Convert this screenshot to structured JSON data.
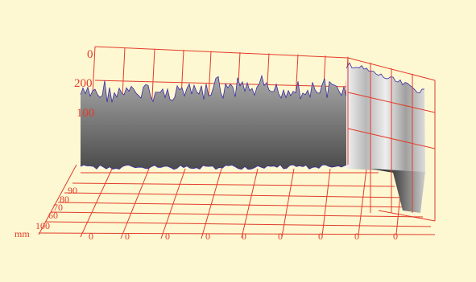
{
  "plot": {
    "background": "#fdf8d2",
    "grid_color": "#e33b2a",
    "surface_color": "#8a8a8a",
    "edge_color": "#3a2aa8",
    "z_labels": [
      "0",
      "200",
      "100"
    ],
    "depth_labels": [
      "90",
      "80",
      "70",
      "60",
      "100"
    ],
    "unit_label": "mm",
    "bottom_labels": [
      "0",
      "0",
      "0",
      "0",
      "0",
      "0",
      "0",
      "0",
      "0"
    ]
  }
}
